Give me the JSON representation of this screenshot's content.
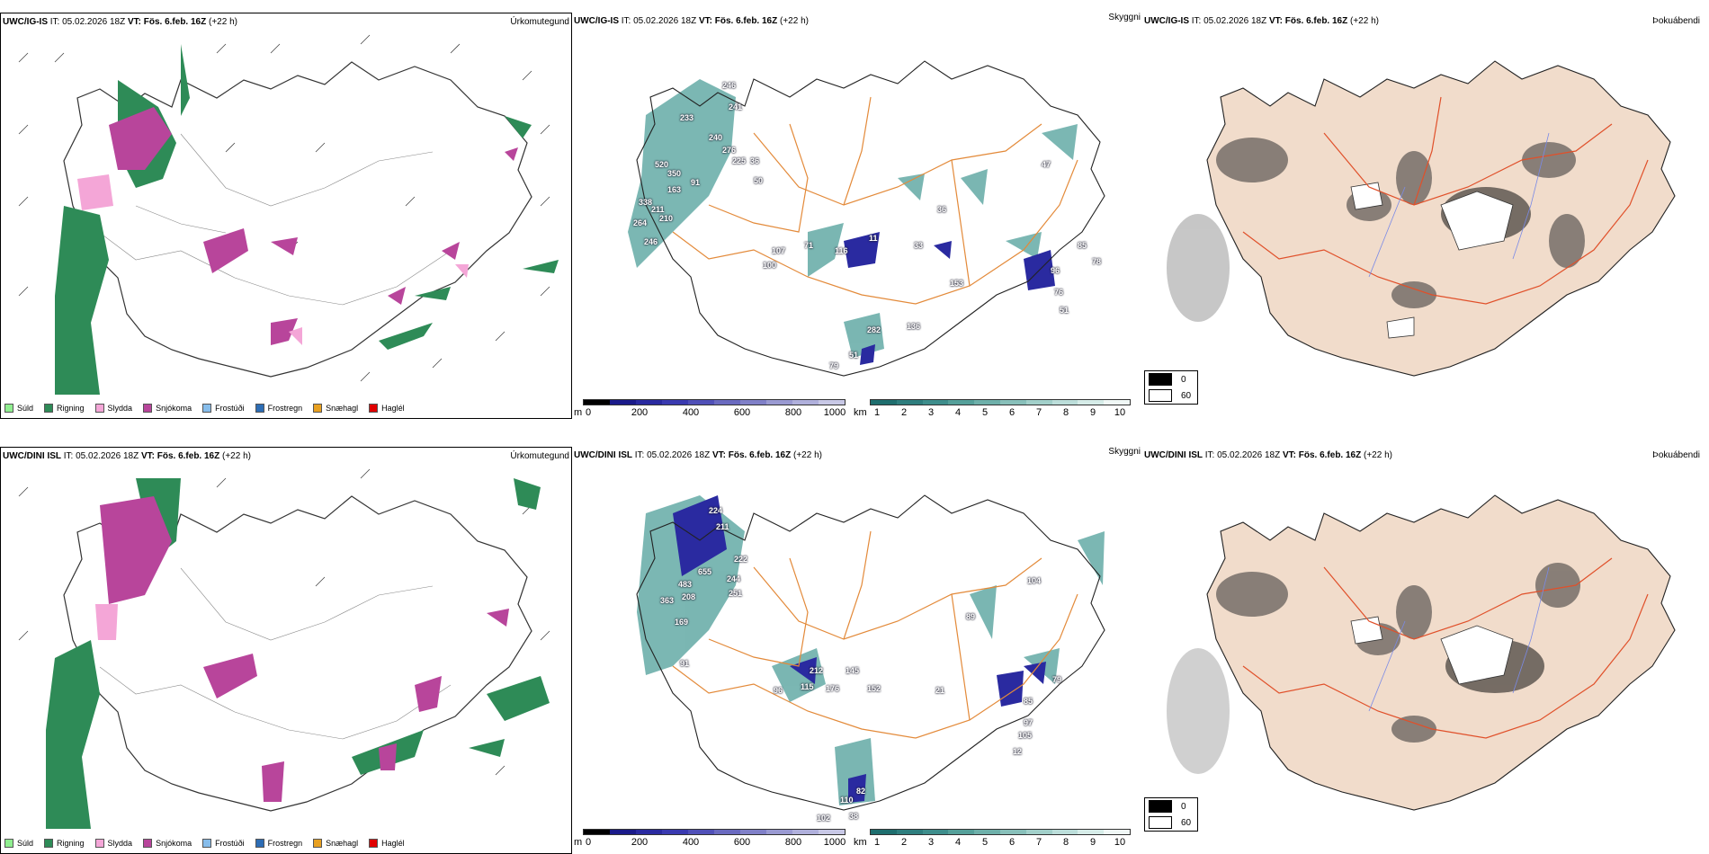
{
  "panels": {
    "precip_top": {
      "model": "UWC/IG-IS",
      "it_label": "IT:",
      "it_value": "05.02.2026 18Z",
      "vt_label": "VT:",
      "vt_value": "Fös. 6.feb. 16Z",
      "lead": "(+22 h)",
      "right_label": "Úrkomutegund"
    },
    "vis_top": {
      "model": "UWC/IG-IS",
      "it_label": "IT:",
      "it_value": "05.02.2026 18Z",
      "vt_label": "VT:",
      "vt_value": "Fös. 6.feb. 16Z",
      "lead": "(+22 h)",
      "right_label": "Skyggni",
      "value_labels": [
        "246",
        "241",
        "233",
        "240",
        "276",
        "225",
        "520",
        "350",
        "50",
        "36",
        "91",
        "163",
        "338",
        "211",
        "210",
        "264",
        "246",
        "107",
        "71",
        "116",
        "11",
        "100",
        "33",
        "36",
        "85",
        "78",
        "96",
        "76",
        "51",
        "153",
        "136",
        "282",
        "51",
        "79",
        "47"
      ]
    },
    "fog_top": {
      "model": "UWC/IG-IS",
      "it_label": "IT:",
      "it_value": "05.02.2026 18Z",
      "vt_label": "VT:",
      "vt_value": "Fös. 6.feb. 16Z",
      "lead": "(+22 h)",
      "right_label": "Þokuábendi"
    },
    "precip_bottom": {
      "model": "UWC/DINI ISL",
      "it_label": "IT:",
      "it_value": "05.02.2026 18Z",
      "vt_label": "VT:",
      "vt_value": "Fös. 6.feb. 16Z",
      "lead": "(+22 h)",
      "right_label": "Úrkomutegund"
    },
    "vis_bottom": {
      "model": "UWC/DINI ISL",
      "it_label": "IT:",
      "it_value": "05.02.2026 18Z",
      "vt_label": "VT:",
      "vt_value": "Fös. 6.feb. 16Z",
      "lead": "(+22 h)",
      "right_label": "Skyggni",
      "value_labels": [
        "224",
        "211",
        "222",
        "655",
        "483",
        "244",
        "208",
        "363",
        "251",
        "169",
        "91",
        "96",
        "115",
        "212",
        "145",
        "176",
        "152",
        "21",
        "89",
        "104",
        "79",
        "85",
        "97",
        "105",
        "12",
        "82",
        "110",
        "38",
        "102"
      ]
    },
    "fog_bottom": {
      "model": "UWC/DINI ISL",
      "it_label": "IT:",
      "it_value": "05.02.2026 18Z",
      "vt_label": "VT:",
      "vt_value": "Fös. 6.feb. 16Z",
      "lead": "(+22 h)",
      "right_label": "Þokuábendi"
    }
  },
  "precip_legend": [
    {
      "label": "Súld",
      "color": "#90ee90"
    },
    {
      "label": "Rigning",
      "color": "#2e8b57"
    },
    {
      "label": "Slydda",
      "color": "#f4a6d7"
    },
    {
      "label": "Snjókoma",
      "color": "#b8459b"
    },
    {
      "label": "Frostúði",
      "color": "#87bdeb"
    },
    {
      "label": "Frostregn",
      "color": "#2d6db5"
    },
    {
      "label": "Snæhagl",
      "color": "#e8a020"
    },
    {
      "label": "Haglél",
      "color": "#e00000"
    }
  ],
  "ceiling_colorbar": {
    "unit": "m",
    "ticks": [
      "0",
      "200",
      "400",
      "600",
      "800",
      "1000"
    ],
    "colors": [
      "#000000",
      "#1a1a8a",
      "#2a2aa0",
      "#3a3ab0",
      "#5050b8",
      "#6a6ac0",
      "#8080c8",
      "#9a9ad2",
      "#b0b0dc",
      "#c8c8e6"
    ]
  },
  "visibility_colorbar": {
    "unit": "km",
    "ticks": [
      "1",
      "2",
      "3",
      "4",
      "5",
      "6",
      "7",
      "8",
      "9",
      "10"
    ],
    "colors": [
      "#1e6e6e",
      "#2e7e7e",
      "#3e8e8c",
      "#55a09a",
      "#6eb0aa",
      "#88c0ba",
      "#a2d0ca",
      "#bcdeda",
      "#d6ece8",
      "#f0f8f6"
    ]
  },
  "fog_legend": [
    {
      "label": "0",
      "color": "#000000"
    },
    {
      "label": "60",
      "color": "#ffffff"
    }
  ]
}
